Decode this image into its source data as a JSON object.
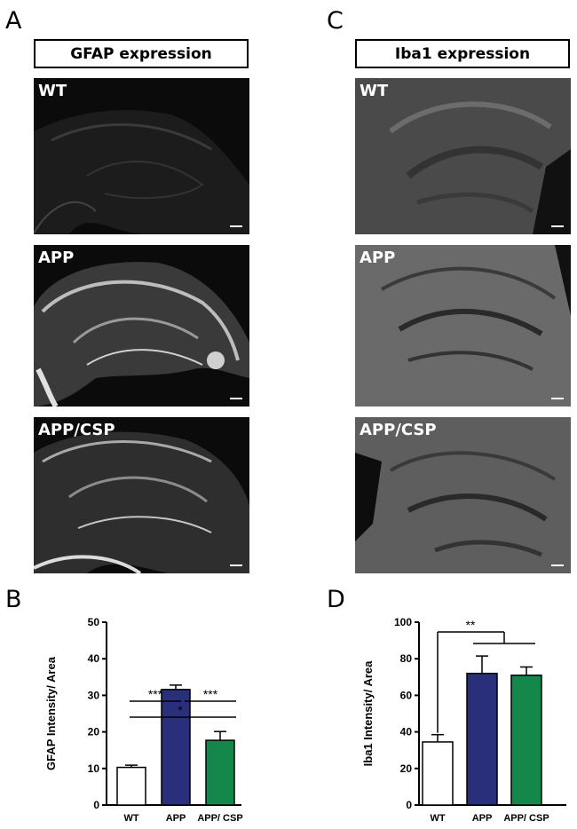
{
  "panels": {
    "A": "A",
    "B": "B",
    "C": "C",
    "D": "D"
  },
  "gfap_title": "GFAP expression",
  "iba1_title": "Iba1 expression",
  "image_labels": {
    "wt": "WT",
    "app": "APP",
    "app_csp": "APP/CSP"
  },
  "colors": {
    "wt": "#ffffff",
    "app": "#2a2f7b",
    "app_csp": "#14874a"
  },
  "chart_data": [
    {
      "type": "bar",
      "panel": "B",
      "categories": [
        "WT",
        "APP",
        "APP/ CSP"
      ],
      "values": [
        10.3,
        31.6,
        17.7
      ],
      "errors": [
        0.6,
        1.2,
        2.4
      ],
      "ylabel": "GFAP Intensity/ Area",
      "ylim": [
        0,
        50
      ],
      "yticks": [
        "0",
        "10",
        "20",
        "30",
        "40",
        "50"
      ],
      "significance": [
        {
          "label": "***",
          "from": "WT",
          "to": "APP"
        },
        {
          "label": "***",
          "from": "APP",
          "to": "APP/ CSP"
        },
        {
          "label": "*",
          "from": "WT",
          "to": "APP/ CSP"
        }
      ]
    },
    {
      "type": "bar",
      "panel": "D",
      "categories": [
        "WT",
        "APP",
        "APP/ CSP"
      ],
      "values": [
        34.5,
        72.0,
        71.0
      ],
      "errors": [
        4.0,
        9.5,
        4.5
      ],
      "ylabel": "Iba1 Intensity/ Area",
      "ylim": [
        0,
        100
      ],
      "yticks": [
        "0",
        "20",
        "40",
        "60",
        "80",
        "100"
      ],
      "significance": [
        {
          "label": "**",
          "from": "WT",
          "to": "APP, APP/ CSP"
        }
      ]
    }
  ]
}
